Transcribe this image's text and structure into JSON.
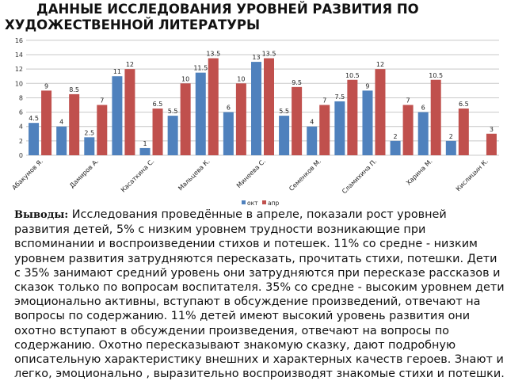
{
  "title": "ДАННЫЕ  ИССЛЕДОВАНИЯ УРОВНЕЙ РАЗВИТИЯ ПО ХУДОЖЕСТВЕННОЙ ЛИТЕРАТУРЫ",
  "conclusion": {
    "label": "Выводы:",
    "text": " Исследования  проведённые  в апреле, показали  рост  уровней развития детей, 5% с низким уровнем  трудности возникающие при вспоминании и воспроизведении стихов и потешек. 11% со средне - низким уровнем развития затрудняются пересказать, прочитать стихи, потешки. Дети с 35% занимают средний уровень  они затрудняются при пересказе  рассказов и сказок только по вопросам воспитателя. 35% со средне - высоким уровнем дети эмоционально активны, вступают в обсуждение произведений, отвечают на вопросы по содержанию. 11% детей имеют высокий уровень развития  они охотно вступают в обсуждении произведения, отвечают на вопросы по содержанию. Охотно пересказывают знакомую сказку, дают подробную описательную характеристику внешних и характерных качеств героев. Знают и легко, эмоционально , выразительно воспроизводят знакомые стихи и потешки."
  },
  "chart_data": {
    "type": "bar",
    "categories": [
      "Абакумов Я.",
      "",
      "Дамиров А.",
      "",
      "Касаткина С.",
      "",
      "Мальцева К.",
      "",
      "Минеева С.",
      "",
      "Семенков М.",
      "",
      "Сламихина П.",
      "",
      "Харина М.",
      "",
      "Кислицын К."
    ],
    "series": [
      {
        "name": "окт",
        "color": "#4f81bd",
        "values": [
          4.5,
          4,
          2.5,
          11,
          1,
          5.5,
          11.5,
          6,
          13,
          5.5,
          4,
          7.5,
          9,
          2,
          6,
          2,
          null
        ]
      },
      {
        "name": "апр",
        "color": "#c0504d",
        "values": [
          9,
          8.5,
          7,
          12,
          6.5,
          10,
          13.5,
          10,
          13.5,
          9.5,
          7,
          10.5,
          12,
          7,
          10.5,
          6.5,
          3
        ]
      }
    ],
    "ylim": [
      0,
      16
    ],
    "yticks": [
      0,
      2,
      4,
      6,
      8,
      10,
      12,
      14,
      16
    ],
    "grid": true,
    "legend": "bottom",
    "data_labels": true
  }
}
